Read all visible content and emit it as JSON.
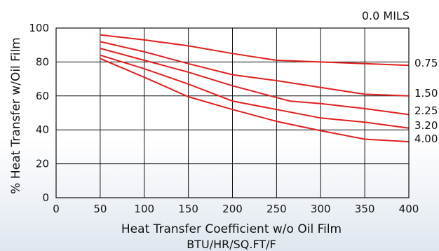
{
  "chart_data": {
    "type": "line",
    "corner_label": "0.0 MILS",
    "xlabel": "Heat Transfer Coefficient w/o Oil Film",
    "xlabel_units": "BTU/HR/SQ.FT/F",
    "ylabel": "% Heat Transfer w/Oil Film",
    "xlim": [
      0,
      400
    ],
    "ylim": [
      0,
      100
    ],
    "xticks": [
      0,
      50,
      100,
      150,
      200,
      250,
      300,
      350,
      400
    ],
    "yticks": [
      0,
      20,
      40,
      60,
      80,
      100
    ],
    "grid": true,
    "series": [
      {
        "name": "0.75",
        "color": "#e02020",
        "points": [
          [
            50,
            96
          ],
          [
            100,
            93
          ],
          [
            150,
            89.5
          ],
          [
            200,
            85
          ],
          [
            250,
            81
          ],
          [
            300,
            80
          ],
          [
            350,
            79
          ],
          [
            400,
            78
          ]
        ]
      },
      {
        "name": "1.50",
        "color": "#e02020",
        "points": [
          [
            50,
            92
          ],
          [
            100,
            86
          ],
          [
            150,
            79
          ],
          [
            200,
            72.5
          ],
          [
            250,
            69
          ],
          [
            300,
            65
          ],
          [
            350,
            61
          ],
          [
            400,
            60
          ]
        ]
      },
      {
        "name": "2.25",
        "color": "#e02020",
        "points": [
          [
            50,
            88
          ],
          [
            100,
            81
          ],
          [
            150,
            74
          ],
          [
            200,
            66
          ],
          [
            265,
            57
          ],
          [
            300,
            55.5
          ],
          [
            350,
            52.5
          ],
          [
            400,
            49
          ]
        ]
      },
      {
        "name": "3.20",
        "color": "#e02020",
        "points": [
          [
            50,
            84
          ],
          [
            100,
            76
          ],
          [
            150,
            67
          ],
          [
            200,
            57
          ],
          [
            250,
            52
          ],
          [
            300,
            47
          ],
          [
            350,
            44.5
          ],
          [
            400,
            41
          ]
        ]
      },
      {
        "name": "4.00",
        "color": "#e02020",
        "points": [
          [
            50,
            82
          ],
          [
            100,
            71
          ],
          [
            150,
            59.5
          ],
          [
            200,
            52
          ],
          [
            250,
            45
          ],
          [
            300,
            39.5
          ],
          [
            350,
            34.5
          ],
          [
            400,
            33
          ]
        ]
      }
    ]
  }
}
